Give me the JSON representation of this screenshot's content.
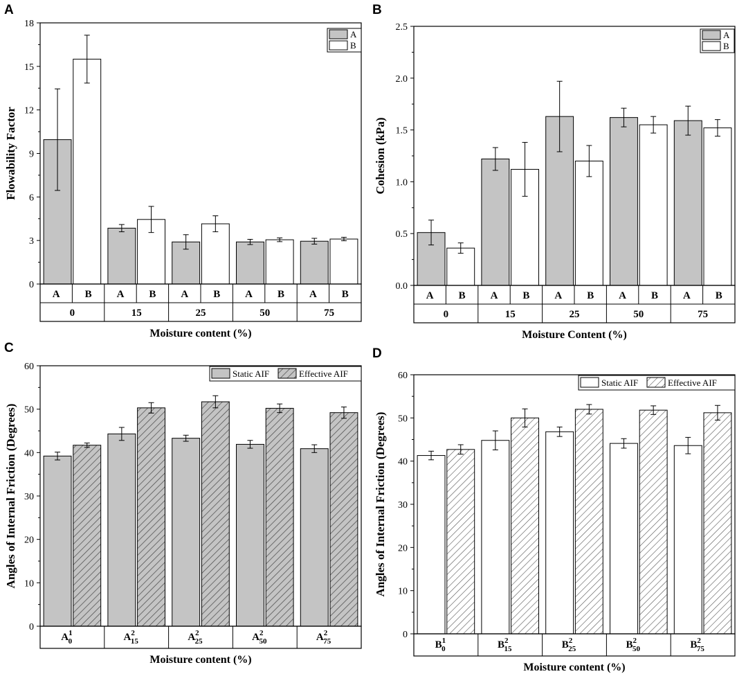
{
  "colors": {
    "fill_a": "#c4c4c4",
    "fill_b": "#ffffff",
    "stroke": "#000000",
    "hatch": "#555555"
  },
  "chart_data": [
    {
      "panel": "A",
      "type": "bar",
      "ylabel": "Flowability Factor",
      "xlabel": "Moisture content (%)",
      "ylim": [
        0,
        18
      ],
      "yticks": [
        "0",
        "3",
        "6",
        "9",
        "12",
        "15",
        "18"
      ],
      "groups": [
        "0",
        "15",
        "25",
        "50",
        "75"
      ],
      "legend": [
        "A",
        "B"
      ],
      "series": [
        {
          "name": "A",
          "style": "gray",
          "label": "A",
          "values": [
            9.95,
            3.85,
            2.9,
            2.9,
            2.95
          ],
          "errors": [
            3.5,
            0.25,
            0.5,
            0.18,
            0.2
          ]
        },
        {
          "name": "B",
          "style": "white",
          "label": "B",
          "values": [
            15.5,
            4.45,
            4.15,
            3.05,
            3.1
          ],
          "errors": [
            1.65,
            0.9,
            0.55,
            0.13,
            0.12
          ]
        }
      ]
    },
    {
      "panel": "B",
      "type": "bar",
      "ylabel": "Cohesion (kPa)",
      "xlabel": "Moisture Content (%)",
      "ylim": [
        0,
        2.5
      ],
      "yticks": [
        "0.0",
        "0.5",
        "1.0",
        "1.5",
        "2.0",
        "2.5"
      ],
      "groups": [
        "0",
        "15",
        "25",
        "50",
        "75"
      ],
      "legend": [
        "A",
        "B"
      ],
      "series": [
        {
          "name": "A",
          "style": "gray",
          "label": "A",
          "values": [
            0.51,
            1.22,
            1.63,
            1.62,
            1.59
          ],
          "errors": [
            0.12,
            0.11,
            0.34,
            0.09,
            0.14
          ]
        },
        {
          "name": "B",
          "style": "white",
          "label": "B",
          "values": [
            0.36,
            1.12,
            1.2,
            1.55,
            1.52
          ],
          "errors": [
            0.05,
            0.26,
            0.15,
            0.08,
            0.08
          ]
        }
      ]
    },
    {
      "panel": "C",
      "type": "bar",
      "ylabel": "Angles of Internal Friction (Degrees)",
      "xlabel": "Moisture content (%)",
      "ylim": [
        0,
        60
      ],
      "yticks": [
        "0",
        "10",
        "20",
        "30",
        "40",
        "50",
        "60"
      ],
      "groups": [
        "A_0^1",
        "A_15^2",
        "A_25^2",
        "A_50^2",
        "A_75^2"
      ],
      "group_base": "A",
      "group_sub": [
        "0",
        "15",
        "25",
        "50",
        "75"
      ],
      "group_sup": [
        "1",
        "2",
        "2",
        "2",
        "2"
      ],
      "legend": [
        "Static AIF",
        "Effective AIF"
      ],
      "series": [
        {
          "name": "Static AIF",
          "style": "gray",
          "values": [
            39.2,
            44.3,
            43.3,
            41.9,
            40.9
          ],
          "errors": [
            0.9,
            1.5,
            0.7,
            0.9,
            0.9
          ]
        },
        {
          "name": "Effective AIF",
          "style": "gray-hatch",
          "values": [
            41.7,
            50.3,
            51.7,
            50.2,
            49.2
          ],
          "errors": [
            0.5,
            1.2,
            1.4,
            1.0,
            1.3
          ]
        }
      ]
    },
    {
      "panel": "D",
      "type": "bar",
      "ylabel": "Angles of Internal Friction (Degrees)",
      "xlabel": "Moisture content (%)",
      "ylim": [
        0,
        60
      ],
      "yticks": [
        "0",
        "10",
        "20",
        "30",
        "40",
        "50",
        "60"
      ],
      "groups": [
        "B_0^1",
        "B_15^2",
        "B_25^2",
        "B_50^2",
        "B_75^2"
      ],
      "group_base": "B",
      "group_sub": [
        "0",
        "15",
        "25",
        "50",
        "75"
      ],
      "group_sup": [
        "1",
        "2",
        "2",
        "2",
        "2"
      ],
      "legend": [
        "Static AIF",
        "Effective AIF"
      ],
      "series": [
        {
          "name": "Static AIF",
          "style": "white",
          "values": [
            41.3,
            44.8,
            46.8,
            44.1,
            43.6
          ],
          "errors": [
            1.0,
            2.2,
            1.1,
            1.1,
            1.9
          ]
        },
        {
          "name": "Effective AIF",
          "style": "white-hatch",
          "values": [
            42.7,
            50.0,
            52.0,
            51.8,
            51.2
          ],
          "errors": [
            1.1,
            2.1,
            1.1,
            1.0,
            1.7
          ]
        }
      ]
    }
  ]
}
